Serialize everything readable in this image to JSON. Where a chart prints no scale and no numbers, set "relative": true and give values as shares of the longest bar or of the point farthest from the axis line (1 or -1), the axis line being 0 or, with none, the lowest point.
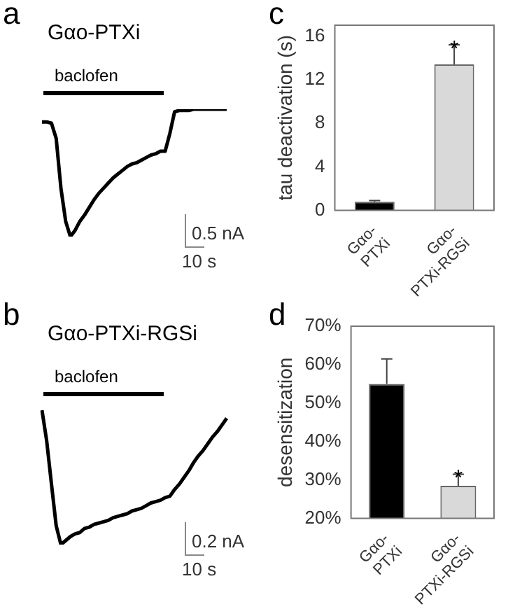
{
  "chart_data": [
    {
      "type": "line",
      "title": "Gαο-PTXi",
      "relative": true,
      "tick_labels": false,
      "categories": [
        null,
        null,
        null,
        null,
        null,
        null,
        null,
        null,
        null,
        null,
        null,
        null,
        null,
        null,
        null,
        null,
        null,
        null,
        null,
        null,
        null,
        null,
        null,
        null,
        null,
        null,
        null,
        null,
        null,
        null,
        null,
        null,
        null,
        null,
        null,
        null,
        null,
        null,
        null,
        null
      ],
      "series": [
        {
          "color": "#000000",
          "values": [
            0.9,
            0.9,
            0.89,
            0.77,
            0.38,
            0.12,
            0,
            0.05,
            0.12,
            0.17,
            0.23,
            0.29,
            0.34,
            0.38,
            0.42,
            0.46,
            0.49,
            0.52,
            0.55,
            0.57,
            0.58,
            0.6,
            0.62,
            0.64,
            0.65,
            0.67,
            0.67,
            0.81,
            0.98,
            0.99,
            0.99,
            0.99,
            1,
            1,
            1,
            1,
            1,
            1,
            1,
            1
          ]
        }
      ],
      "annotations": [
        "a",
        "baclofen",
        "0.5 nA",
        "10 s"
      ]
    },
    {
      "type": "bar",
      "ylabel": "tau deactivation (s)",
      "categories": [
        "Gαο-PTXi",
        "Gαο-PTXi-RGSi"
      ],
      "values": [
        0.8,
        13.4
      ],
      "colors": [
        "#000000",
        "#d9d9d9"
      ],
      "errors": [
        0.1,
        1.8
      ],
      "ylim": [
        0,
        17
      ],
      "yticks": [
        0,
        4,
        8,
        12,
        16
      ],
      "annotations": [
        "c",
        "*"
      ]
    },
    {
      "type": "line",
      "title": "Gαο-PTXi-RGSi",
      "relative": true,
      "tick_labels": false,
      "categories": [
        null,
        null,
        null,
        null,
        null,
        null,
        null,
        null,
        null,
        null,
        null,
        null,
        null,
        null,
        null,
        null,
        null,
        null,
        null,
        null,
        null,
        null,
        null,
        null,
        null,
        null,
        null,
        null,
        null,
        null,
        null,
        null,
        null,
        null,
        null,
        null,
        null,
        null,
        null,
        null
      ],
      "series": [
        {
          "color": "#000000",
          "values": [
            1,
            0.77,
            0.45,
            0.14,
            0,
            0.03,
            0.06,
            0.08,
            0.09,
            0.12,
            0.13,
            0.15,
            0.16,
            0.17,
            0.18,
            0.2,
            0.21,
            0.22,
            0.23,
            0.25,
            0.26,
            0.27,
            0.29,
            0.31,
            0.32,
            0.33,
            0.35,
            0.36,
            0.41,
            0.45,
            0.5,
            0.55,
            0.61,
            0.66,
            0.7,
            0.75,
            0.8,
            0.84,
            0.89,
            0.94
          ]
        }
      ],
      "annotations": [
        "b",
        "baclofen",
        "0.2 nA",
        "10 s"
      ]
    },
    {
      "type": "bar",
      "ylabel": "desensitization",
      "categories": [
        "Gαο-PTXi",
        "Gαο-PTXi-RGSi"
      ],
      "values": [
        55,
        28.5
      ],
      "colors": [
        "#000000",
        "#d9d9d9"
      ],
      "errors": [
        6.5,
        3
      ],
      "ylim": [
        20,
        70
      ],
      "yticks": [
        {
          "value": 20,
          "label": "20%"
        },
        {
          "value": 30,
          "label": "30%"
        },
        {
          "value": 40,
          "label": "40%"
        },
        {
          "value": 50,
          "label": "50%"
        },
        {
          "value": 60,
          "label": "60%"
        },
        {
          "value": 70,
          "label": "70%"
        }
      ],
      "annotations": [
        "d",
        "*"
      ]
    }
  ]
}
